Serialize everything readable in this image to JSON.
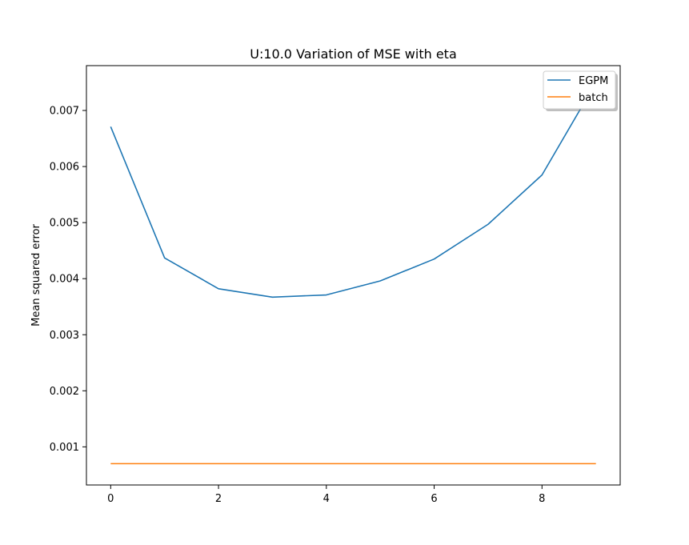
{
  "chart_data": {
    "type": "line",
    "title": "U:10.0 Variation of MSE with eta",
    "xlabel": "",
    "ylabel": "Mean squared error",
    "xlim": [
      -0.45,
      9.45
    ],
    "ylim": [
      0.00032,
      0.0078
    ],
    "xticks": [
      0,
      2,
      4,
      6,
      8
    ],
    "xtick_labels": [
      "0",
      "2",
      "4",
      "6",
      "8"
    ],
    "yticks": [
      0.001,
      0.002,
      0.003,
      0.004,
      0.005,
      0.006,
      0.007
    ],
    "ytick_labels": [
      "0.001",
      "0.002",
      "0.003",
      "0.004",
      "0.005",
      "0.006",
      "0.007"
    ],
    "grid": false,
    "legend_position": "top-right",
    "x": [
      0,
      1,
      2,
      3,
      4,
      5,
      6,
      7,
      8,
      9
    ],
    "series": [
      {
        "name": "EGPM",
        "color": "#1f77b4",
        "values": [
          0.00671,
          0.00437,
          0.00382,
          0.00367,
          0.00371,
          0.00396,
          0.00435,
          0.00497,
          0.00585,
          0.0075
        ]
      },
      {
        "name": "batch",
        "color": "#ff7f0e",
        "values": [
          0.0007,
          0.0007,
          0.0007,
          0.0007,
          0.0007,
          0.0007,
          0.0007,
          0.0007,
          0.0007,
          0.0007
        ]
      }
    ]
  }
}
